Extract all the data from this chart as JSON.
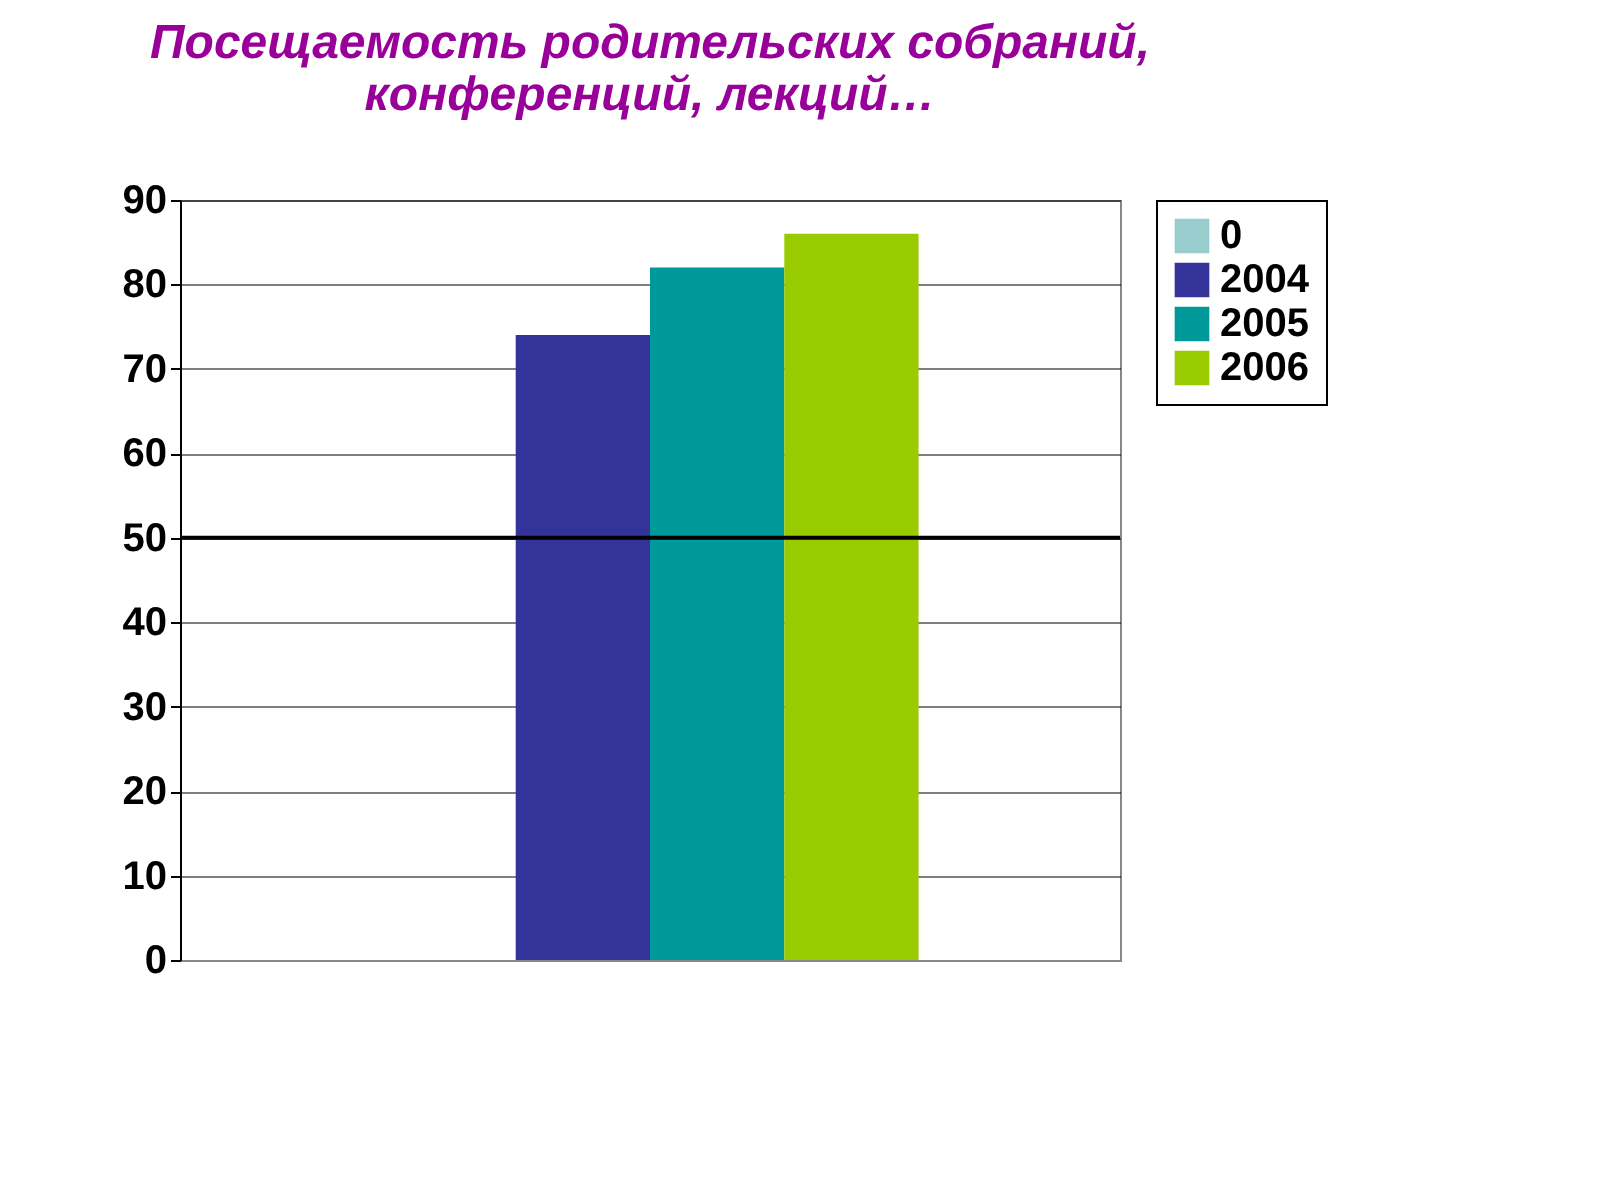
{
  "chart_data": {
    "type": "bar",
    "title": "Посещаемость родительских собраний,\nконференций, лекций…",
    "categories": [
      null
    ],
    "series": [
      {
        "name": "0",
        "color": "#99cccc",
        "values": [
          0
        ]
      },
      {
        "name": "2004",
        "color": "#333399",
        "values": [
          74
        ]
      },
      {
        "name": "2005",
        "color": "#009999",
        "values": [
          82
        ]
      },
      {
        "name": "2006",
        "color": "#99cc00",
        "values": [
          86
        ]
      }
    ],
    "ylim": [
      0,
      90
    ],
    "yticks": [
      0,
      10,
      20,
      30,
      40,
      50,
      60,
      70,
      80,
      90
    ],
    "grid": "y",
    "legend": "right",
    "ref_lines": [
      {
        "axis": "y",
        "value": 50,
        "color": "#000000"
      }
    ]
  }
}
